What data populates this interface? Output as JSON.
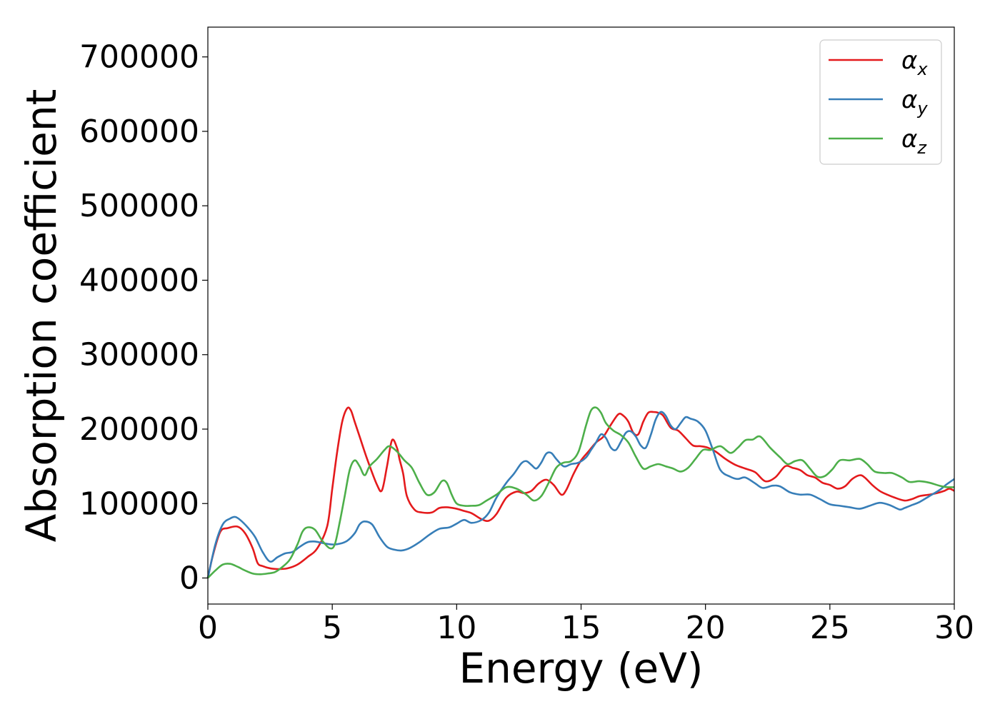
{
  "chart_data": {
    "type": "line",
    "title": "",
    "xlabel": "Energy (eV)",
    "ylabel": "Absorption coefficient",
    "xlim": [
      0,
      30
    ],
    "ylim": [
      -35000,
      740000
    ],
    "xticks": [
      0,
      5,
      10,
      15,
      20,
      25,
      30
    ],
    "yticks": [
      0,
      100000,
      200000,
      300000,
      400000,
      500000,
      600000,
      700000
    ],
    "xtick_labels": [
      "0",
      "5",
      "10",
      "15",
      "20",
      "25",
      "30"
    ],
    "ytick_labels": [
      "0",
      "100000",
      "200000",
      "300000",
      "400000",
      "500000",
      "600000",
      "700000"
    ],
    "grid": false,
    "legend_position": "top-right",
    "series": [
      {
        "name": "α_x",
        "symbol": "α",
        "subscript": "x",
        "color": "#e41a1c",
        "x": [
          0,
          0.2,
          0.5,
          0.8,
          1.2,
          1.5,
          1.8,
          2.0,
          2.2,
          2.5,
          2.8,
          3.2,
          3.6,
          4.0,
          4.4,
          4.8,
          5.0,
          5.2,
          5.4,
          5.6,
          5.75,
          5.9,
          6.1,
          6.4,
          6.8,
          7.0,
          7.2,
          7.4,
          7.6,
          7.7,
          7.85,
          8.0,
          8.3,
          8.6,
          9.0,
          9.3,
          9.6,
          10.0,
          10.3,
          10.6,
          11.0,
          11.3,
          11.6,
          12.0,
          12.4,
          12.7,
          13.0,
          13.3,
          13.6,
          13.9,
          14.2,
          14.4,
          14.7,
          15.0,
          15.3,
          15.6,
          15.9,
          16.2,
          16.5,
          16.7,
          16.9,
          17.1,
          17.3,
          17.5,
          17.7,
          17.9,
          18.1,
          18.3,
          18.6,
          18.9,
          19.2,
          19.5,
          19.8,
          20.1,
          20.4,
          20.8,
          21.2,
          21.6,
          22.0,
          22.4,
          22.8,
          23.2,
          23.5,
          23.8,
          24.1,
          24.4,
          24.7,
          25.0,
          25.3,
          25.6,
          25.9,
          26.2,
          26.4,
          26.7,
          27.0,
          27.3,
          27.6,
          28.0,
          28.3,
          28.6,
          29.0,
          29.3,
          29.6,
          29.8,
          30.0
        ],
        "values": [
          0,
          30000,
          62000,
          67000,
          69000,
          60000,
          40000,
          20000,
          16000,
          13000,
          12000,
          13000,
          18000,
          28000,
          40000,
          70000,
          120000,
          170000,
          210000,
          228000,
          225000,
          210000,
          190000,
          160000,
          125000,
          118000,
          150000,
          185000,
          175000,
          160000,
          140000,
          110000,
          92000,
          88000,
          88000,
          94000,
          95000,
          93000,
          90000,
          87000,
          79000,
          77000,
          86000,
          108000,
          116000,
          114000,
          117000,
          127000,
          132000,
          125000,
          112000,
          118000,
          140000,
          158000,
          170000,
          182000,
          190000,
          206000,
          220000,
          218000,
          210000,
          195000,
          193000,
          210000,
          222000,
          223000,
          222000,
          218000,
          202000,
          198000,
          188000,
          178000,
          177000,
          175000,
          170000,
          160000,
          152000,
          147000,
          142000,
          130000,
          135000,
          150000,
          148000,
          145000,
          138000,
          135000,
          128000,
          125000,
          120000,
          123000,
          133000,
          138000,
          135000,
          125000,
          117000,
          112000,
          108000,
          104000,
          106000,
          110000,
          112000,
          114000,
          117000,
          120000,
          117000
        ]
      },
      {
        "name": "α_y",
        "symbol": "α",
        "subscript": "y",
        "color": "#377eb8",
        "x": [
          0,
          0.3,
          0.6,
          0.9,
          1.1,
          1.3,
          1.6,
          1.9,
          2.2,
          2.5,
          2.8,
          3.1,
          3.4,
          3.7,
          4.0,
          4.3,
          4.6,
          5.0,
          5.3,
          5.6,
          5.9,
          6.1,
          6.3,
          6.6,
          6.9,
          7.2,
          7.5,
          7.8,
          8.1,
          8.5,
          8.9,
          9.3,
          9.7,
          10.0,
          10.3,
          10.6,
          11.0,
          11.3,
          11.6,
          12.0,
          12.3,
          12.6,
          12.8,
          13.0,
          13.2,
          13.4,
          13.6,
          13.8,
          14.0,
          14.3,
          14.6,
          14.9,
          15.2,
          15.4,
          15.6,
          15.8,
          16.0,
          16.2,
          16.4,
          16.6,
          16.8,
          17.0,
          17.2,
          17.4,
          17.6,
          17.8,
          18.0,
          18.2,
          18.4,
          18.6,
          18.8,
          19.0,
          19.2,
          19.4,
          19.7,
          20.0,
          20.3,
          20.6,
          21.0,
          21.3,
          21.6,
          22.0,
          22.3,
          22.7,
          23.0,
          23.4,
          23.8,
          24.2,
          24.6,
          25.0,
          25.4,
          25.8,
          26.2,
          26.6,
          27.0,
          27.4,
          27.8,
          28.0,
          28.3,
          28.6,
          29.0,
          29.4,
          29.7,
          30.0
        ],
        "values": [
          0,
          45000,
          72000,
          80000,
          82000,
          78000,
          68000,
          55000,
          35000,
          22000,
          28000,
          33000,
          35000,
          42000,
          48000,
          49000,
          47000,
          45000,
          46000,
          50000,
          60000,
          72000,
          76000,
          72000,
          55000,
          42000,
          38000,
          37000,
          40000,
          48000,
          58000,
          66000,
          68000,
          73000,
          78000,
          74000,
          78000,
          88000,
          108000,
          128000,
          140000,
          154000,
          157000,
          152000,
          147000,
          155000,
          167000,
          168000,
          160000,
          150000,
          153000,
          155000,
          162000,
          172000,
          182000,
          193000,
          188000,
          175000,
          172000,
          183000,
          195000,
          197000,
          190000,
          178000,
          175000,
          192000,
          213000,
          223000,
          218000,
          205000,
          200000,
          208000,
          216000,
          214000,
          210000,
          198000,
          172000,
          145000,
          136000,
          133000,
          135000,
          127000,
          121000,
          124000,
          123000,
          115000,
          112000,
          112000,
          106000,
          99000,
          97000,
          95000,
          93000,
          97000,
          101000,
          98000,
          92000,
          94000,
          98000,
          102000,
          110000,
          118000,
          126000,
          133000
        ]
      },
      {
        "name": "α_z",
        "symbol": "α",
        "subscript": "z",
        "color": "#4daf4a",
        "x": [
          0,
          0.3,
          0.6,
          0.9,
          1.2,
          1.5,
          1.8,
          2.1,
          2.4,
          2.7,
          3.0,
          3.3,
          3.6,
          3.8,
          4.0,
          4.3,
          4.6,
          4.9,
          5.1,
          5.3,
          5.5,
          5.7,
          5.9,
          6.1,
          6.3,
          6.5,
          6.8,
          7.1,
          7.3,
          7.6,
          7.9,
          8.2,
          8.5,
          8.8,
          9.1,
          9.4,
          9.6,
          9.8,
          10.0,
          10.3,
          10.6,
          10.9,
          11.2,
          11.6,
          12.0,
          12.4,
          12.8,
          13.1,
          13.4,
          13.7,
          14.0,
          14.3,
          14.6,
          14.9,
          15.2,
          15.4,
          15.6,
          15.8,
          16.0,
          16.3,
          16.6,
          16.9,
          17.2,
          17.5,
          17.8,
          18.1,
          18.4,
          18.7,
          19.0,
          19.3,
          19.6,
          19.9,
          20.2,
          20.6,
          21.0,
          21.3,
          21.6,
          21.9,
          22.2,
          22.6,
          23.0,
          23.3,
          23.6,
          23.9,
          24.2,
          24.5,
          24.8,
          25.1,
          25.4,
          25.8,
          26.2,
          26.5,
          26.8,
          27.2,
          27.5,
          27.9,
          28.2,
          28.6,
          29.0,
          29.4,
          29.7,
          30.0
        ],
        "values": [
          0,
          10000,
          18000,
          19000,
          15000,
          10000,
          6000,
          5000,
          6000,
          8000,
          15000,
          25000,
          45000,
          62000,
          68000,
          65000,
          50000,
          40000,
          45000,
          75000,
          110000,
          145000,
          158000,
          150000,
          138000,
          150000,
          160000,
          172000,
          177000,
          170000,
          158000,
          148000,
          128000,
          112000,
          115000,
          130000,
          128000,
          112000,
          100000,
          97000,
          97000,
          98000,
          104000,
          112000,
          122000,
          120000,
          112000,
          104000,
          110000,
          128000,
          148000,
          155000,
          157000,
          170000,
          205000,
          225000,
          229000,
          222000,
          208000,
          198000,
          192000,
          182000,
          163000,
          147000,
          150000,
          153000,
          150000,
          147000,
          143000,
          148000,
          160000,
          172000,
          172000,
          177000,
          168000,
          175000,
          185000,
          186000,
          190000,
          175000,
          162000,
          153000,
          157000,
          158000,
          147000,
          136000,
          137000,
          146000,
          158000,
          158000,
          160000,
          153000,
          143000,
          141000,
          141000,
          135000,
          129000,
          130000,
          128000,
          124000,
          122000,
          122000
        ]
      }
    ]
  }
}
